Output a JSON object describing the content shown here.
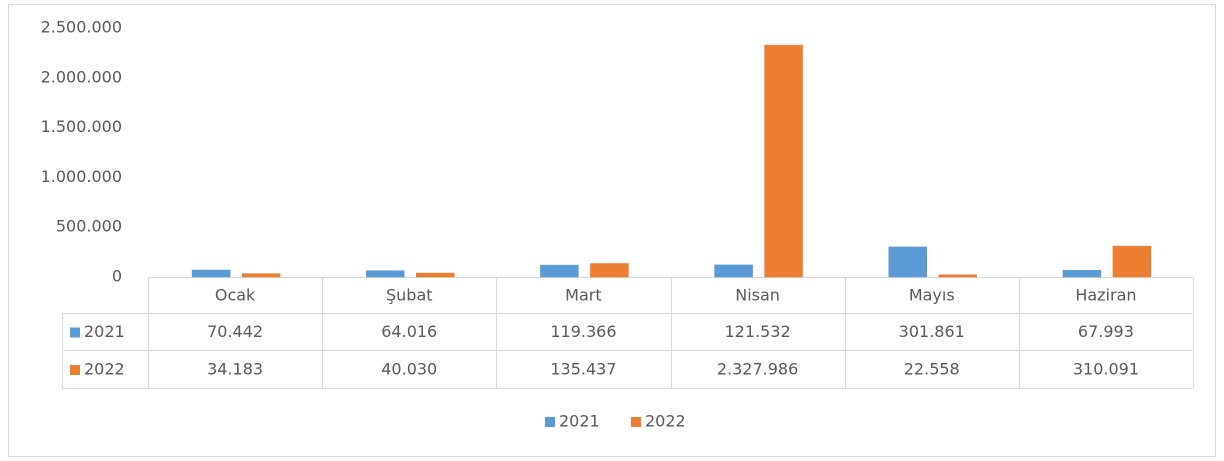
{
  "chart_data": {
    "type": "bar",
    "categories": [
      "Ocak",
      "Şubat",
      "Mart",
      "Nisan",
      "Mayıs",
      "Haziran"
    ],
    "series": [
      {
        "name": "2021",
        "color": "#5b9bd5",
        "values": [
          70442,
          64016,
          119366,
          121532,
          301861,
          67993
        ],
        "value_labels": [
          "70.442",
          "64.016",
          "119.366",
          "121.532",
          "301.861",
          "67.993"
        ]
      },
      {
        "name": "2022",
        "color": "#ed7d31",
        "values": [
          34183,
          40030,
          135437,
          2327986,
          22558,
          310091
        ],
        "value_labels": [
          "34.183",
          "40.030",
          "135.437",
          "2.327.986",
          "22.558",
          "310.091"
        ]
      }
    ],
    "ylim": [
      0,
      2500000
    ],
    "yticks": [
      0,
      {
        "value": 500000,
        "label": "500.000"
      },
      {
        "value": 1000000,
        "label": "1.000.000"
      },
      {
        "value": 1500000,
        "label": "1.500.000"
      },
      {
        "value": 2000000,
        "label": "2.000.000"
      },
      {
        "value": 2500000,
        "label": "2.500.000"
      }
    ],
    "grid": false,
    "legend": "bottom"
  }
}
